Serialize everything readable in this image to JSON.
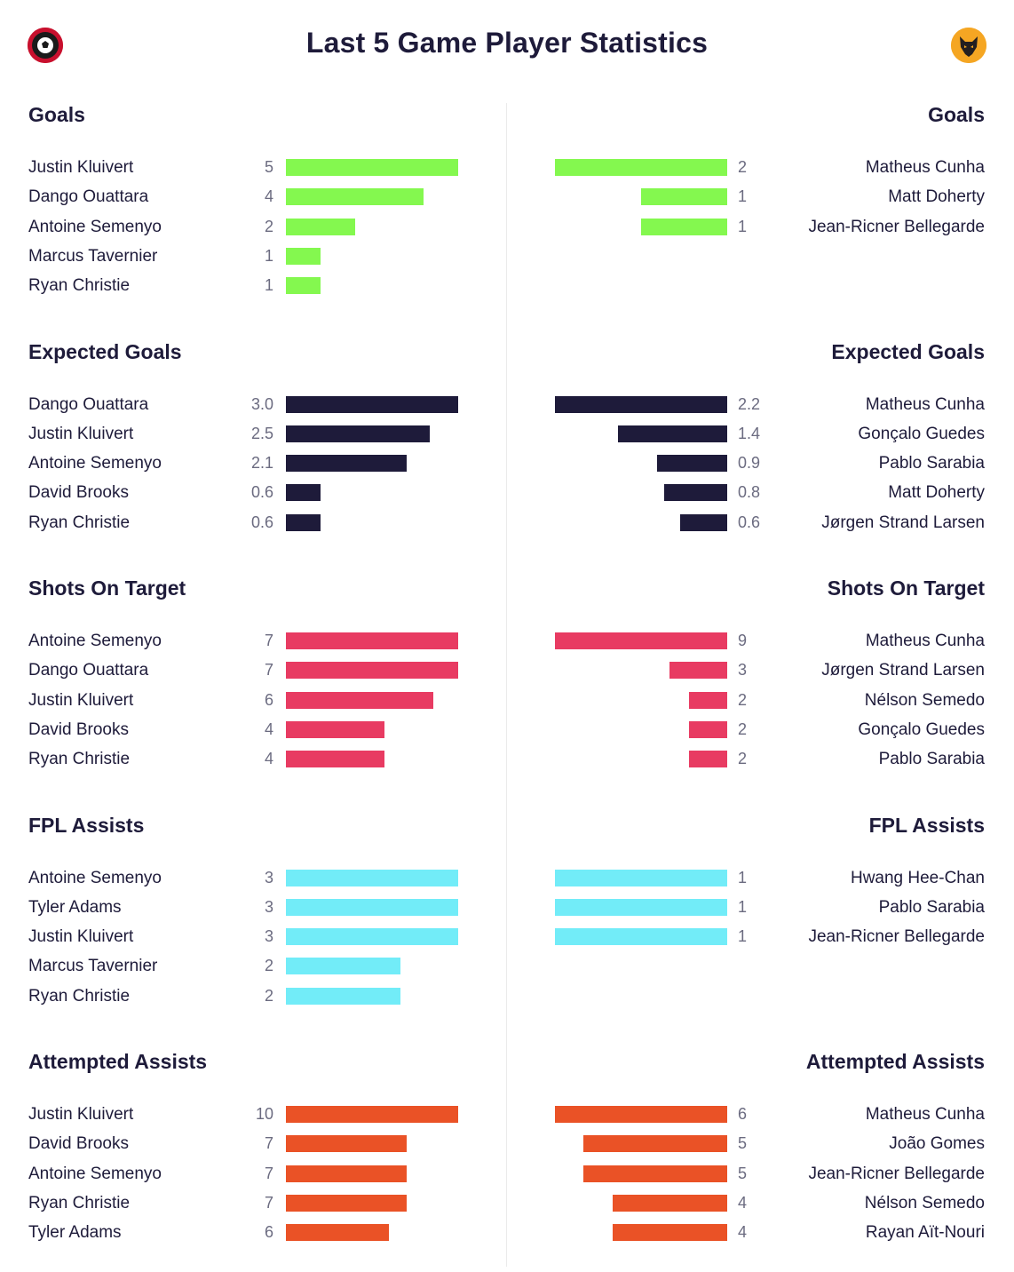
{
  "title": "Last 5 Game Player Statistics",
  "logos": {
    "home": "bournemouth-crest-icon",
    "away": "wolves-crest-icon"
  },
  "colors": {
    "goals": "#84f84f",
    "expected_goals": "#1e1b3a",
    "shots_on_target": "#e83b62",
    "fpl_assists": "#72ecf8",
    "attempted_assists": "#ea5226"
  },
  "chart_data": [
    {
      "type": "bar",
      "key": "goals",
      "title": "Goals",
      "home": [
        {
          "name": "Justin Kluivert",
          "value": 5,
          "label": "5"
        },
        {
          "name": "Dango Ouattara",
          "value": 4,
          "label": "4"
        },
        {
          "name": "Antoine Semenyo",
          "value": 2,
          "label": "2"
        },
        {
          "name": "Marcus Tavernier",
          "value": 1,
          "label": "1"
        },
        {
          "name": "Ryan Christie",
          "value": 1,
          "label": "1"
        }
      ],
      "away": [
        {
          "name": "Matheus Cunha",
          "value": 2,
          "label": "2"
        },
        {
          "name": "Matt Doherty",
          "value": 1,
          "label": "1"
        },
        {
          "name": "Jean-Ricner Bellegarde",
          "value": 1,
          "label": "1"
        }
      ]
    },
    {
      "type": "bar",
      "key": "expected_goals",
      "title": "Expected Goals",
      "home": [
        {
          "name": "Dango Ouattara",
          "value": 3.0,
          "label": "3.0"
        },
        {
          "name": "Justin Kluivert",
          "value": 2.5,
          "label": "2.5"
        },
        {
          "name": "Antoine Semenyo",
          "value": 2.1,
          "label": "2.1"
        },
        {
          "name": "David Brooks",
          "value": 0.6,
          "label": "0.6"
        },
        {
          "name": "Ryan Christie",
          "value": 0.6,
          "label": "0.6"
        }
      ],
      "away": [
        {
          "name": "Matheus Cunha",
          "value": 2.2,
          "label": "2.2"
        },
        {
          "name": "Gonçalo Guedes",
          "value": 1.4,
          "label": "1.4"
        },
        {
          "name": "Pablo Sarabia",
          "value": 0.9,
          "label": "0.9"
        },
        {
          "name": "Matt Doherty",
          "value": 0.8,
          "label": "0.8"
        },
        {
          "name": "Jørgen Strand Larsen",
          "value": 0.6,
          "label": "0.6"
        }
      ]
    },
    {
      "type": "bar",
      "key": "shots_on_target",
      "title": "Shots On Target",
      "home": [
        {
          "name": "Antoine Semenyo",
          "value": 7,
          "label": "7"
        },
        {
          "name": "Dango Ouattara",
          "value": 7,
          "label": "7"
        },
        {
          "name": "Justin Kluivert",
          "value": 6,
          "label": "6"
        },
        {
          "name": "David Brooks",
          "value": 4,
          "label": "4"
        },
        {
          "name": "Ryan Christie",
          "value": 4,
          "label": "4"
        }
      ],
      "away": [
        {
          "name": "Matheus Cunha",
          "value": 9,
          "label": "9"
        },
        {
          "name": "Jørgen Strand Larsen",
          "value": 3,
          "label": "3"
        },
        {
          "name": "Nélson Semedo",
          "value": 2,
          "label": "2"
        },
        {
          "name": "Gonçalo Guedes",
          "value": 2,
          "label": "2"
        },
        {
          "name": "Pablo Sarabia",
          "value": 2,
          "label": "2"
        }
      ]
    },
    {
      "type": "bar",
      "key": "fpl_assists",
      "title": "FPL Assists",
      "home": [
        {
          "name": "Antoine Semenyo",
          "value": 3,
          "label": "3"
        },
        {
          "name": "Tyler Adams",
          "value": 3,
          "label": "3"
        },
        {
          "name": "Justin Kluivert",
          "value": 3,
          "label": "3"
        },
        {
          "name": "Marcus Tavernier",
          "value": 2,
          "label": "2"
        },
        {
          "name": "Ryan Christie",
          "value": 2,
          "label": "2"
        }
      ],
      "away": [
        {
          "name": "Hwang Hee-Chan",
          "value": 1,
          "label": "1"
        },
        {
          "name": "Pablo Sarabia",
          "value": 1,
          "label": "1"
        },
        {
          "name": "Jean-Ricner Bellegarde",
          "value": 1,
          "label": "1"
        }
      ]
    },
    {
      "type": "bar",
      "key": "attempted_assists",
      "title": "Attempted Assists",
      "home": [
        {
          "name": "Justin Kluivert",
          "value": 10,
          "label": "10"
        },
        {
          "name": "David Brooks",
          "value": 7,
          "label": "7"
        },
        {
          "name": "Antoine Semenyo",
          "value": 7,
          "label": "7"
        },
        {
          "name": "Ryan Christie",
          "value": 7,
          "label": "7"
        },
        {
          "name": "Tyler Adams",
          "value": 6,
          "label": "6"
        }
      ],
      "away": [
        {
          "name": "Matheus Cunha",
          "value": 6,
          "label": "6"
        },
        {
          "name": "João Gomes",
          "value": 5,
          "label": "5"
        },
        {
          "name": "Jean-Ricner Bellegarde",
          "value": 5,
          "label": "5"
        },
        {
          "name": "Nélson Semedo",
          "value": 4,
          "label": "4"
        },
        {
          "name": "Rayan Aït-Nouri",
          "value": 4,
          "label": "4"
        }
      ]
    }
  ]
}
